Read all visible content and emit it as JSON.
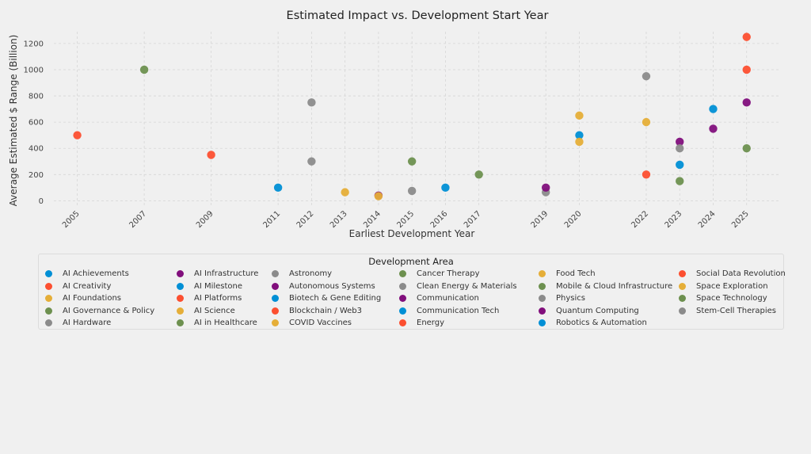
{
  "chart_data": {
    "type": "scatter",
    "title": "Estimated Impact vs. Development Start Year",
    "xlabel": "Earliest Development Year",
    "ylabel": "Average Estimated $ Range (Billion)",
    "xlim": [
      2004.3,
      2026.0
    ],
    "ylim": [
      -40,
      1290
    ],
    "xticks": [
      2005,
      2007,
      2009,
      2011,
      2012,
      2013,
      2014,
      2015,
      2016,
      2017,
      2019,
      2020,
      2022,
      2023,
      2024,
      2025
    ],
    "yticks": [
      0,
      200,
      400,
      600,
      800,
      1000,
      1200
    ],
    "grid": true,
    "legend": {
      "title": "Development Area",
      "placement": "bottom",
      "columns": 6,
      "entries": [
        {
          "label": "AI Achievements",
          "color": "#008fd5"
        },
        {
          "label": "AI Creativity",
          "color": "#fc4f30"
        },
        {
          "label": "AI Foundations",
          "color": "#e5ae38"
        },
        {
          "label": "AI Governance & Policy",
          "color": "#6d904f"
        },
        {
          "label": "AI Hardware",
          "color": "#8b8b8b"
        },
        {
          "label": "AI Infrastructure",
          "color": "#810f7c"
        },
        {
          "label": "AI Milestone",
          "color": "#008fd5"
        },
        {
          "label": "AI Platforms",
          "color": "#fc4f30"
        },
        {
          "label": "AI Science",
          "color": "#e5ae38"
        },
        {
          "label": "AI in Healthcare",
          "color": "#6d904f"
        },
        {
          "label": "Astronomy",
          "color": "#8b8b8b"
        },
        {
          "label": "Autonomous Systems",
          "color": "#810f7c"
        },
        {
          "label": "Biotech & Gene Editing",
          "color": "#008fd5"
        },
        {
          "label": "Blockchain / Web3",
          "color": "#fc4f30"
        },
        {
          "label": "COVID Vaccines",
          "color": "#e5ae38"
        },
        {
          "label": "Cancer Therapy",
          "color": "#6d904f"
        },
        {
          "label": "Clean Energy & Materials",
          "color": "#8b8b8b"
        },
        {
          "label": "Communication",
          "color": "#810f7c"
        },
        {
          "label": "Communication Tech",
          "color": "#008fd5"
        },
        {
          "label": "Energy",
          "color": "#fc4f30"
        },
        {
          "label": "Food Tech",
          "color": "#e5ae38"
        },
        {
          "label": "Mobile & Cloud Infrastructure",
          "color": "#6d904f"
        },
        {
          "label": "Physics",
          "color": "#8b8b8b"
        },
        {
          "label": "Quantum Computing",
          "color": "#810f7c"
        },
        {
          "label": "Robotics & Automation",
          "color": "#008fd5"
        },
        {
          "label": "Social Data Revolution",
          "color": "#fc4f30"
        },
        {
          "label": "Space Exploration",
          "color": "#e5ae38"
        },
        {
          "label": "Space Technology",
          "color": "#6d904f"
        },
        {
          "label": "Stem-Cell Therapies",
          "color": "#8b8b8b"
        }
      ]
    },
    "points": [
      {
        "x": 2005,
        "y": 500,
        "color": "#fc4f30"
      },
      {
        "x": 2007,
        "y": 1000,
        "color": "#6d904f"
      },
      {
        "x": 2009,
        "y": 350,
        "color": "#fc4f30"
      },
      {
        "x": 2011,
        "y": 100,
        "color": "#008fd5"
      },
      {
        "x": 2012,
        "y": 750,
        "color": "#8b8b8b"
      },
      {
        "x": 2012,
        "y": 300,
        "color": "#8b8b8b"
      },
      {
        "x": 2013,
        "y": 65,
        "color": "#e5ae38"
      },
      {
        "x": 2014,
        "y": 40,
        "color": "#810f7c"
      },
      {
        "x": 2014,
        "y": 35,
        "color": "#e5ae38"
      },
      {
        "x": 2015,
        "y": 300,
        "color": "#6d904f"
      },
      {
        "x": 2015,
        "y": 75,
        "color": "#8b8b8b"
      },
      {
        "x": 2016,
        "y": 100,
        "color": "#008fd5"
      },
      {
        "x": 2017,
        "y": 200,
        "color": "#6d904f"
      },
      {
        "x": 2019,
        "y": 65,
        "color": "#8b8b8b"
      },
      {
        "x": 2019,
        "y": 100,
        "color": "#810f7c"
      },
      {
        "x": 2020,
        "y": 650,
        "color": "#e5ae38"
      },
      {
        "x": 2020,
        "y": 500,
        "color": "#008fd5"
      },
      {
        "x": 2020,
        "y": 450,
        "color": "#e5ae38"
      },
      {
        "x": 2022,
        "y": 950,
        "color": "#8b8b8b"
      },
      {
        "x": 2022,
        "y": 600,
        "color": "#e5ae38"
      },
      {
        "x": 2022,
        "y": 200,
        "color": "#fc4f30"
      },
      {
        "x": 2023,
        "y": 450,
        "color": "#810f7c"
      },
      {
        "x": 2023,
        "y": 400,
        "color": "#8b8b8b"
      },
      {
        "x": 2023,
        "y": 275,
        "color": "#008fd5"
      },
      {
        "x": 2023,
        "y": 150,
        "color": "#6d904f"
      },
      {
        "x": 2024,
        "y": 700,
        "color": "#008fd5"
      },
      {
        "x": 2024,
        "y": 550,
        "color": "#810f7c"
      },
      {
        "x": 2025,
        "y": 1250,
        "color": "#fc4f30"
      },
      {
        "x": 2025,
        "y": 1000,
        "color": "#fc4f30"
      },
      {
        "x": 2025,
        "y": 750,
        "color": "#810f7c"
      },
      {
        "x": 2025,
        "y": 400,
        "color": "#6d904f"
      }
    ]
  }
}
